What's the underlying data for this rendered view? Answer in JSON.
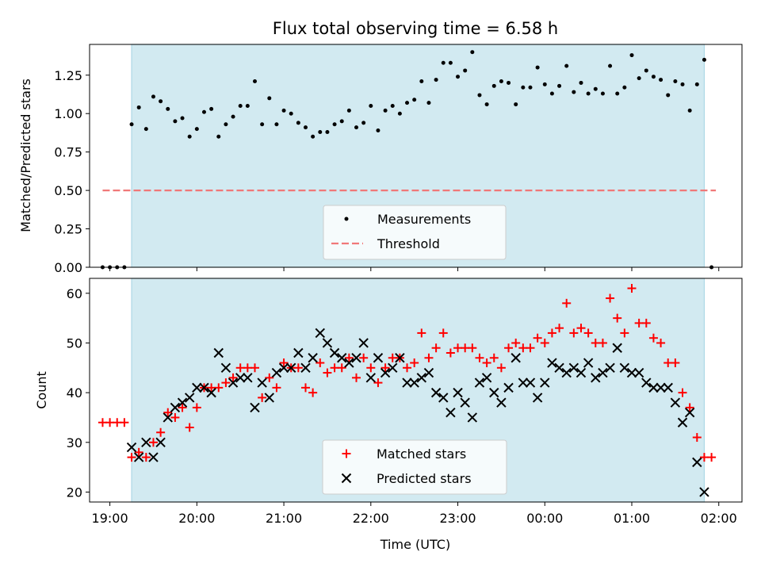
{
  "title": "Flux total observing time = 6.58 h",
  "colors": {
    "span": "#add8e6",
    "measurements": "#000000",
    "threshold": "#f07878",
    "matched": "#ff0000",
    "predicted": "#000000"
  },
  "chart_data": [
    {
      "type": "scatter",
      "ylabel": "Matched/Predicted stars",
      "ylim": [
        0,
        1.45
      ],
      "yticks": [
        "0.00",
        "0.25",
        "0.50",
        "0.75",
        "1.00",
        "1.25"
      ],
      "xlim": [
        "18:46",
        "02:16"
      ],
      "observing_span": [
        "19:15",
        "01:50"
      ],
      "legend": {
        "position": "lower-center",
        "entries": [
          "Measurements",
          "Threshold"
        ]
      },
      "threshold": {
        "value": 0.5,
        "x_range": [
          "18:55",
          "01:58"
        ]
      },
      "series": [
        {
          "name": "Measurements",
          "points": [
            [
              "18:55",
              0
            ],
            [
              "19:00",
              0
            ],
            [
              "19:05",
              0
            ],
            [
              "19:10",
              0
            ],
            [
              "19:15",
              0.93
            ],
            [
              "19:20",
              1.04
            ],
            [
              "19:25",
              0.9
            ],
            [
              "19:30",
              1.11
            ],
            [
              "19:35",
              1.08
            ],
            [
              "19:40",
              1.03
            ],
            [
              "19:45",
              0.95
            ],
            [
              "19:50",
              0.97
            ],
            [
              "19:55",
              0.85
            ],
            [
              "20:00",
              0.9
            ],
            [
              "20:05",
              1.01
            ],
            [
              "20:10",
              1.03
            ],
            [
              "20:15",
              0.85
            ],
            [
              "20:20",
              0.93
            ],
            [
              "20:25",
              0.98
            ],
            [
              "20:30",
              1.05
            ],
            [
              "20:35",
              1.05
            ],
            [
              "20:40",
              1.21
            ],
            [
              "20:45",
              0.93
            ],
            [
              "20:50",
              1.1
            ],
            [
              "20:55",
              0.93
            ],
            [
              "21:00",
              1.02
            ],
            [
              "21:05",
              1.0
            ],
            [
              "21:10",
              0.94
            ],
            [
              "21:15",
              0.91
            ],
            [
              "21:20",
              0.85
            ],
            [
              "21:25",
              0.88
            ],
            [
              "21:30",
              0.88
            ],
            [
              "21:35",
              0.93
            ],
            [
              "21:40",
              0.95
            ],
            [
              "21:45",
              1.02
            ],
            [
              "21:50",
              0.91
            ],
            [
              "21:55",
              0.94
            ],
            [
              "22:00",
              1.05
            ],
            [
              "22:05",
              0.89
            ],
            [
              "22:10",
              1.02
            ],
            [
              "22:15",
              1.05
            ],
            [
              "22:20",
              1.0
            ],
            [
              "22:25",
              1.07
            ],
            [
              "22:30",
              1.09
            ],
            [
              "22:35",
              1.21
            ],
            [
              "22:40",
              1.07
            ],
            [
              "22:45",
              1.22
            ],
            [
              "22:50",
              1.33
            ],
            [
              "22:55",
              1.33
            ],
            [
              "23:00",
              1.24
            ],
            [
              "23:05",
              1.28
            ],
            [
              "23:10",
              1.4
            ],
            [
              "23:15",
              1.12
            ],
            [
              "23:20",
              1.06
            ],
            [
              "23:25",
              1.18
            ],
            [
              "23:30",
              1.21
            ],
            [
              "23:35",
              1.2
            ],
            [
              "23:40",
              1.06
            ],
            [
              "23:45",
              1.17
            ],
            [
              "23:50",
              1.17
            ],
            [
              "23:55",
              1.3
            ],
            [
              "00:00",
              1.19
            ],
            [
              "00:05",
              1.13
            ],
            [
              "00:10",
              1.18
            ],
            [
              "00:15",
              1.31
            ],
            [
              "00:20",
              1.14
            ],
            [
              "00:25",
              1.2
            ],
            [
              "00:30",
              1.13
            ],
            [
              "00:35",
              1.16
            ],
            [
              "00:40",
              1.13
            ],
            [
              "00:45",
              1.31
            ],
            [
              "00:50",
              1.13
            ],
            [
              "00:55",
              1.17
            ],
            [
              "01:00",
              1.38
            ],
            [
              "01:05",
              1.23
            ],
            [
              "01:10",
              1.28
            ],
            [
              "01:15",
              1.24
            ],
            [
              "01:20",
              1.22
            ],
            [
              "01:25",
              1.12
            ],
            [
              "01:30",
              1.21
            ],
            [
              "01:35",
              1.19
            ],
            [
              "01:40",
              1.02
            ],
            [
              "01:45",
              1.19
            ],
            [
              "01:50",
              1.35
            ],
            [
              "01:55",
              0
            ]
          ]
        }
      ]
    },
    {
      "type": "scatter",
      "xlabel": "Time (UTC)",
      "ylabel": "Count",
      "ylim": [
        18,
        63
      ],
      "yticks": [
        "20",
        "30",
        "40",
        "50",
        "60"
      ],
      "xlim": [
        "18:46",
        "02:16"
      ],
      "xticks": [
        "19:00",
        "20:00",
        "21:00",
        "22:00",
        "23:00",
        "00:00",
        "01:00",
        "02:00"
      ],
      "observing_span": [
        "19:15",
        "01:50"
      ],
      "legend": {
        "position": "lower-center",
        "entries": [
          "Matched stars",
          "Predicted stars"
        ]
      },
      "series": [
        {
          "name": "Matched stars",
          "points": [
            [
              "18:55",
              34
            ],
            [
              "19:00",
              34
            ],
            [
              "19:05",
              34
            ],
            [
              "19:10",
              34
            ],
            [
              "19:15",
              27
            ],
            [
              "19:20",
              28
            ],
            [
              "19:25",
              27
            ],
            [
              "19:30",
              30
            ],
            [
              "19:35",
              32
            ],
            [
              "19:40",
              36
            ],
            [
              "19:45",
              35
            ],
            [
              "19:50",
              37
            ],
            [
              "19:55",
              33
            ],
            [
              "20:00",
              37
            ],
            [
              "20:05",
              41
            ],
            [
              "20:10",
              41
            ],
            [
              "20:15",
              41
            ],
            [
              "20:20",
              42
            ],
            [
              "20:25",
              43
            ],
            [
              "20:30",
              45
            ],
            [
              "20:35",
              45
            ],
            [
              "20:40",
              45
            ],
            [
              "20:45",
              39
            ],
            [
              "20:50",
              43
            ],
            [
              "20:55",
              41
            ],
            [
              "21:00",
              46
            ],
            [
              "21:05",
              45
            ],
            [
              "21:10",
              45
            ],
            [
              "21:15",
              41
            ],
            [
              "21:20",
              40
            ],
            [
              "21:25",
              46
            ],
            [
              "21:30",
              44
            ],
            [
              "21:35",
              45
            ],
            [
              "21:40",
              45
            ],
            [
              "21:45",
              47
            ],
            [
              "21:50",
              43
            ],
            [
              "21:55",
              47
            ],
            [
              "22:00",
              45
            ],
            [
              "22:05",
              42
            ],
            [
              "22:10",
              45
            ],
            [
              "22:15",
              47
            ],
            [
              "22:20",
              47
            ],
            [
              "22:25",
              45
            ],
            [
              "22:30",
              46
            ],
            [
              "22:35",
              52
            ],
            [
              "22:40",
              47
            ],
            [
              "22:45",
              49
            ],
            [
              "22:50",
              52
            ],
            [
              "22:55",
              48
            ],
            [
              "23:00",
              49
            ],
            [
              "23:05",
              49
            ],
            [
              "23:10",
              49
            ],
            [
              "23:15",
              47
            ],
            [
              "23:20",
              46
            ],
            [
              "23:25",
              47
            ],
            [
              "23:30",
              45
            ],
            [
              "23:35",
              49
            ],
            [
              "23:40",
              50
            ],
            [
              "23:45",
              49
            ],
            [
              "23:50",
              49
            ],
            [
              "23:55",
              51
            ],
            [
              "00:00",
              50
            ],
            [
              "00:05",
              52
            ],
            [
              "00:10",
              53
            ],
            [
              "00:15",
              58
            ],
            [
              "00:20",
              52
            ],
            [
              "00:25",
              53
            ],
            [
              "00:30",
              52
            ],
            [
              "00:35",
              50
            ],
            [
              "00:40",
              50
            ],
            [
              "00:45",
              59
            ],
            [
              "00:50",
              55
            ],
            [
              "00:55",
              52
            ],
            [
              "01:00",
              61
            ],
            [
              "01:05",
              54
            ],
            [
              "01:10",
              54
            ],
            [
              "01:15",
              51
            ],
            [
              "01:20",
              50
            ],
            [
              "01:25",
              46
            ],
            [
              "01:30",
              46
            ],
            [
              "01:35",
              40
            ],
            [
              "01:40",
              37
            ],
            [
              "01:45",
              31
            ],
            [
              "01:50",
              27
            ],
            [
              "01:55",
              27
            ]
          ]
        },
        {
          "name": "Predicted stars",
          "points": [
            [
              "19:15",
              29
            ],
            [
              "19:20",
              27
            ],
            [
              "19:25",
              30
            ],
            [
              "19:30",
              27
            ],
            [
              "19:35",
              30
            ],
            [
              "19:40",
              35
            ],
            [
              "19:45",
              37
            ],
            [
              "19:50",
              38
            ],
            [
              "19:55",
              39
            ],
            [
              "20:00",
              41
            ],
            [
              "20:05",
              41
            ],
            [
              "20:10",
              40
            ],
            [
              "20:15",
              48
            ],
            [
              "20:20",
              45
            ],
            [
              "20:25",
              42
            ],
            [
              "20:30",
              43
            ],
            [
              "20:35",
              43
            ],
            [
              "20:40",
              37
            ],
            [
              "20:45",
              42
            ],
            [
              "20:50",
              39
            ],
            [
              "20:55",
              44
            ],
            [
              "21:00",
              45
            ],
            [
              "21:05",
              45
            ],
            [
              "21:10",
              48
            ],
            [
              "21:15",
              45
            ],
            [
              "21:20",
              47
            ],
            [
              "21:25",
              52
            ],
            [
              "21:30",
              50
            ],
            [
              "21:35",
              48
            ],
            [
              "21:40",
              47
            ],
            [
              "21:45",
              46
            ],
            [
              "21:50",
              47
            ],
            [
              "21:55",
              50
            ],
            [
              "22:00",
              43
            ],
            [
              "22:05",
              47
            ],
            [
              "22:10",
              44
            ],
            [
              "22:15",
              45
            ],
            [
              "22:20",
              47
            ],
            [
              "22:25",
              42
            ],
            [
              "22:30",
              42
            ],
            [
              "22:35",
              43
            ],
            [
              "22:40",
              44
            ],
            [
              "22:45",
              40
            ],
            [
              "22:50",
              39
            ],
            [
              "22:55",
              36
            ],
            [
              "23:00",
              40
            ],
            [
              "23:05",
              38
            ],
            [
              "23:10",
              35
            ],
            [
              "23:15",
              42
            ],
            [
              "23:20",
              43
            ],
            [
              "23:25",
              40
            ],
            [
              "23:30",
              38
            ],
            [
              "23:35",
              41
            ],
            [
              "23:40",
              47
            ],
            [
              "23:45",
              42
            ],
            [
              "23:50",
              42
            ],
            [
              "23:55",
              39
            ],
            [
              "00:00",
              42
            ],
            [
              "00:05",
              46
            ],
            [
              "00:10",
              45
            ],
            [
              "00:15",
              44
            ],
            [
              "00:20",
              45
            ],
            [
              "00:25",
              44
            ],
            [
              "00:30",
              46
            ],
            [
              "00:35",
              43
            ],
            [
              "00:40",
              44
            ],
            [
              "00:45",
              45
            ],
            [
              "00:50",
              49
            ],
            [
              "00:55",
              45
            ],
            [
              "01:00",
              44
            ],
            [
              "01:05",
              44
            ],
            [
              "01:10",
              42
            ],
            [
              "01:15",
              41
            ],
            [
              "01:20",
              41
            ],
            [
              "01:25",
              41
            ],
            [
              "01:30",
              38
            ],
            [
              "01:35",
              34
            ],
            [
              "01:40",
              36
            ],
            [
              "01:45",
              26
            ],
            [
              "01:50",
              20
            ]
          ]
        }
      ]
    }
  ]
}
